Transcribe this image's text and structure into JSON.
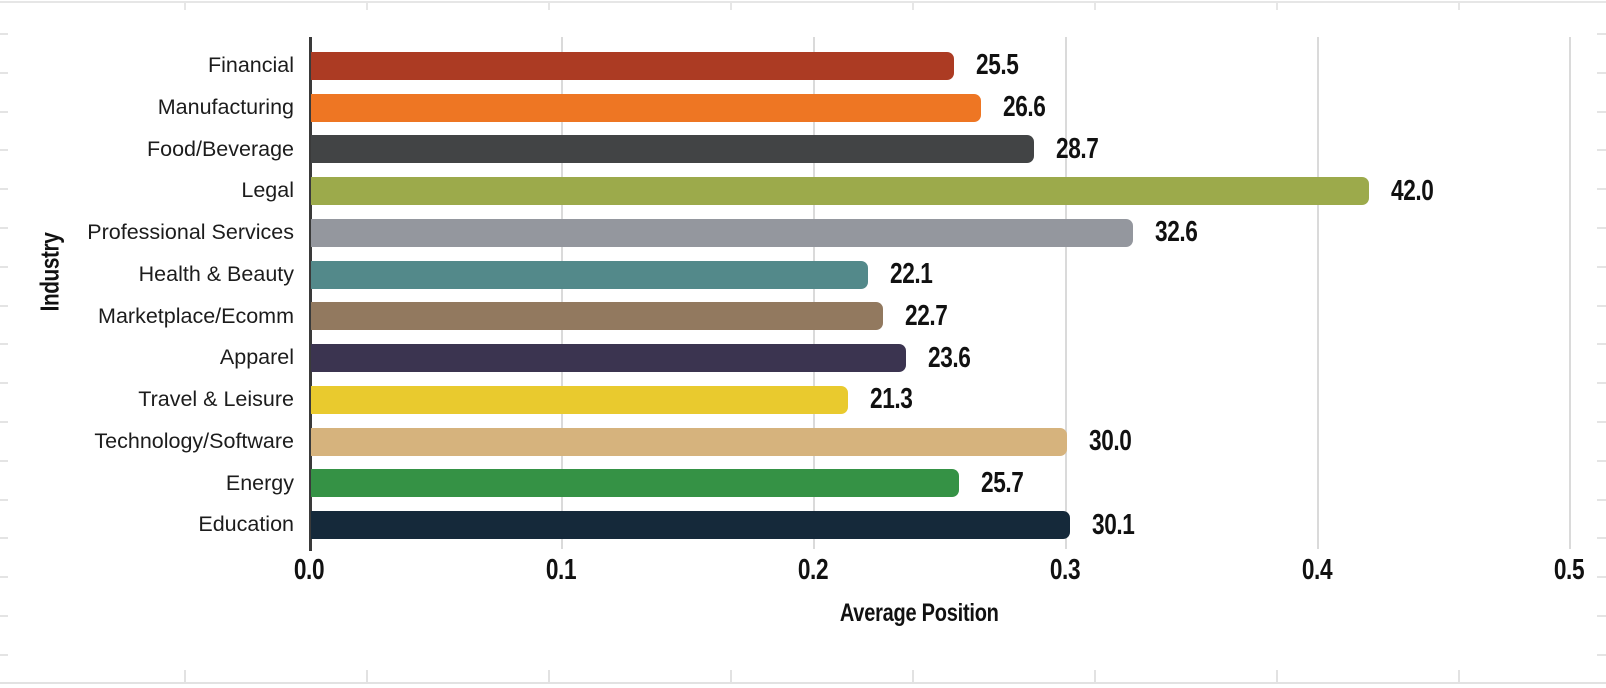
{
  "chart_data": {
    "type": "bar",
    "orientation": "horizontal",
    "title": "",
    "xlabel": "Average Position",
    "ylabel": "Industry",
    "xlim": [
      0.0,
      0.5
    ],
    "xtick_labels": [
      "0.0",
      "0.1",
      "0.2",
      "0.3",
      "0.4",
      "0.5"
    ],
    "xtick_values": [
      0.0,
      0.1,
      0.2,
      0.3,
      0.4,
      0.5
    ],
    "grid": "vertical gridlines at each x tick",
    "legend_position": "none",
    "categories": [
      "Financial",
      "Manufacturing",
      "Food/Beverage",
      "Legal",
      "Professional Services",
      "Health & Beauty",
      "Marketplace/Ecomm",
      "Apparel",
      "Travel & Leisure",
      "Technology/Software",
      "Energy",
      "Education"
    ],
    "values": [
      25.5,
      26.6,
      28.7,
      42.0,
      32.6,
      22.1,
      22.7,
      23.6,
      21.3,
      30.0,
      25.7,
      30.1
    ],
    "value_labels": [
      "25.5",
      "26.6",
      "28.7",
      "42.0",
      "32.6",
      "22.1",
      "22.7",
      "23.6",
      "21.3",
      "30.0",
      "25.7",
      "30.1"
    ],
    "bar_axis_extents": [
      0.255,
      0.266,
      0.287,
      0.42,
      0.326,
      0.221,
      0.227,
      0.236,
      0.213,
      0.3,
      0.257,
      0.301
    ],
    "bar_colors": [
      "#AC3B23",
      "#EE7623",
      "#424445",
      "#9CAA4B",
      "#94979E",
      "#53898A",
      "#92795F",
      "#3B3450",
      "#E9CA2E",
      "#D6B37D",
      "#359245",
      "#15293A"
    ],
    "colors": {
      "axis_line": "#3a3a3a",
      "gridline": "#dadada",
      "label_text": "#111111",
      "background": "#ffffff"
    }
  }
}
